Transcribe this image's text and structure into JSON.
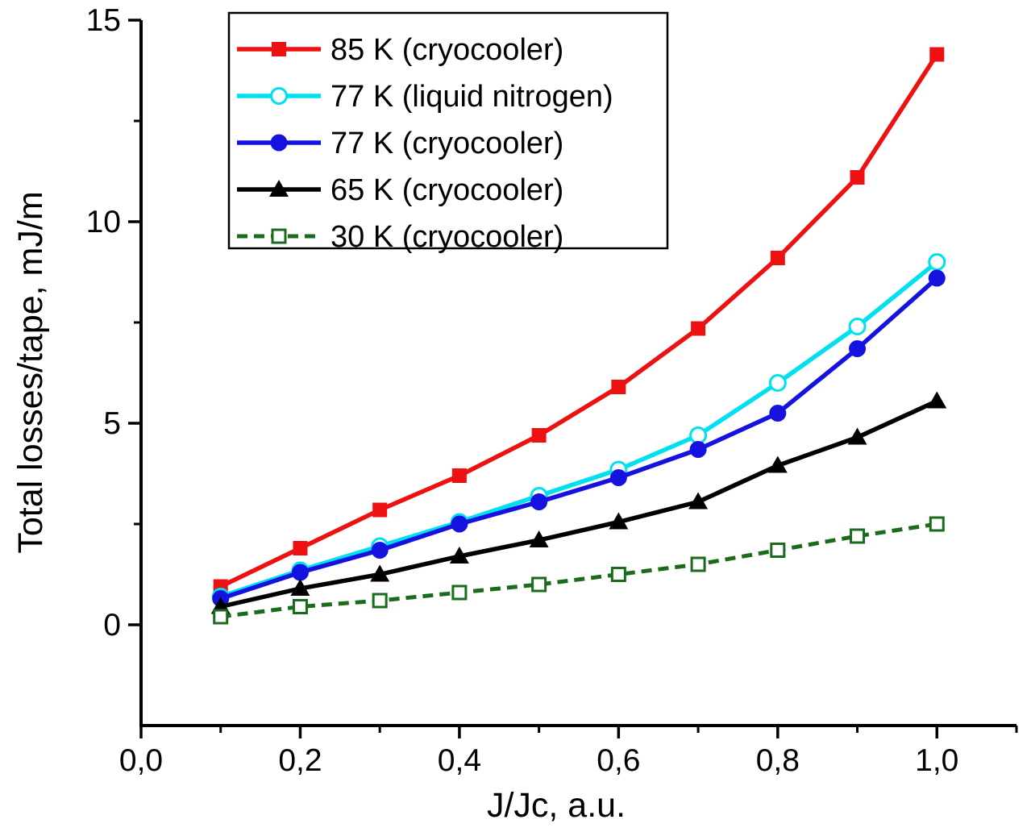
{
  "chart_data": {
    "type": "line",
    "title": "",
    "xlabel": "J/Jc, a.u.",
    "ylabel": "Total losses/tape, mJ/m",
    "xlim": [
      0,
      1.1
    ],
    "ylim": [
      -2.5,
      15
    ],
    "grid": false,
    "background": "#ffffff",
    "axis_color": "#000000",
    "legend_position": "top-left",
    "x_ticks": {
      "values": [
        0,
        0.2,
        0.4,
        0.6,
        0.8,
        1.0
      ],
      "labels": [
        "0,0",
        "0,2",
        "0,4",
        "0,6",
        "0,8",
        "1,0"
      ],
      "minor": [
        0.1,
        0.3,
        0.5,
        0.7,
        0.9,
        1.1
      ]
    },
    "y_ticks": {
      "values": [
        0,
        5,
        10,
        15
      ],
      "labels": [
        "0",
        "5",
        "10",
        "15"
      ],
      "minor": [
        2.5,
        7.5,
        12.5
      ]
    },
    "x": [
      0.1,
      0.2,
      0.3,
      0.4,
      0.5,
      0.6,
      0.7,
      0.8,
      0.9,
      1.0
    ],
    "series": [
      {
        "name": "85 K (cryocooler)",
        "color": "#ee1111",
        "marker": "square-filled",
        "line": "solid",
        "values": [
          0.95,
          1.9,
          2.85,
          3.7,
          4.7,
          5.9,
          7.35,
          9.1,
          11.1,
          14.15
        ]
      },
      {
        "name": "77 K (liquid nitrogen)",
        "color": "#00e1f0",
        "marker": "circle-open",
        "line": "solid",
        "values": [
          0.7,
          1.35,
          1.95,
          2.55,
          3.2,
          3.85,
          4.7,
          6.0,
          7.4,
          9.0
        ]
      },
      {
        "name": "77 K (cryocooler)",
        "color": "#1512e0",
        "marker": "circle-filled",
        "line": "solid",
        "values": [
          0.65,
          1.3,
          1.85,
          2.5,
          3.05,
          3.65,
          4.35,
          5.25,
          6.85,
          8.6
        ]
      },
      {
        "name": "65 K (cryocooler)",
        "color": "#000000",
        "marker": "triangle-filled",
        "line": "solid",
        "values": [
          0.45,
          0.9,
          1.25,
          1.7,
          2.1,
          2.55,
          3.05,
          3.95,
          4.65,
          5.55
        ]
      },
      {
        "name": "30 K (cryocooler)",
        "color": "#1a6b1c",
        "marker": "square-open",
        "line": "dashed",
        "values": [
          0.2,
          0.45,
          0.6,
          0.8,
          1.0,
          1.25,
          1.5,
          1.85,
          2.2,
          2.5
        ]
      }
    ]
  }
}
